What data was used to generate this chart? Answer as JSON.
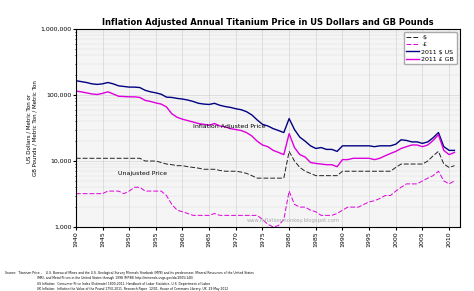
{
  "title": "Inflation Adjusted Annual Titanium Price in US Dollars and GB Pounds",
  "ylabel_line1": "US Dollars / Metric Ton or",
  "ylabel_line2": "GB Pounds / Metric Ton / Metric Ton",
  "legend": [
    "·$",
    "·£",
    "2011 $ US",
    "2011 £ GB"
  ],
  "background_color": "#f5f5f5",
  "grid_color": "#cccccc",
  "watermark": "www.inflationmonkey.blogspot.com",
  "source_line1": "Source:  Titanium Price -    U.S. Bureau of Mines and the U.S. Geological Survey Minerals Yearbook (MYB) and its predecessor, Mineral Resources of the United States",
  "source_line2": "                                (MR), and Metal Prices in the United States through 1998 (MP98) http://minerals.usgs.gov/ds/2005/140/",
  "source_line3": "                                US Inflation:  Consumer Price Index (Estimate) 1800-2011. Handbook of Labor Statistics, U.S. Department of Labor",
  "source_line4": "                                UK Inflation:  Inflation the Value of the Pound 1750-2011. Research Paper  12/01, House of Commons Library, UK. 29 May 2012",
  "years": [
    1940,
    1941,
    1942,
    1943,
    1944,
    1945,
    1946,
    1947,
    1948,
    1949,
    1950,
    1951,
    1952,
    1953,
    1954,
    1955,
    1956,
    1957,
    1958,
    1959,
    1960,
    1961,
    1962,
    1963,
    1964,
    1965,
    1966,
    1967,
    1968,
    1969,
    1970,
    1971,
    1972,
    1973,
    1974,
    1975,
    1976,
    1977,
    1978,
    1979,
    1980,
    1981,
    1982,
    1983,
    1984,
    1985,
    1986,
    1987,
    1988,
    1989,
    1990,
    1991,
    1992,
    1993,
    1994,
    1995,
    1996,
    1997,
    1998,
    1999,
    2000,
    2001,
    2002,
    2003,
    2004,
    2005,
    2006,
    2007,
    2008,
    2009,
    2010,
    2011
  ],
  "usd_nominal": [
    11000,
    11000,
    11000,
    11000,
    11000,
    11000,
    11000,
    11000,
    11000,
    11000,
    11000,
    11000,
    11000,
    10000,
    10000,
    10000,
    9500,
    9000,
    8800,
    8500,
    8500,
    8200,
    8000,
    7800,
    7500,
    7500,
    7500,
    7200,
    7000,
    7000,
    7000,
    6800,
    6500,
    6000,
    5500,
    5500,
    5500,
    5500,
    5500,
    5500,
    14000,
    10000,
    8000,
    7000,
    6500,
    6000,
    6000,
    6000,
    6000,
    6000,
    7000,
    7000,
    7000,
    7000,
    7000,
    7000,
    7000,
    7000,
    7000,
    7000,
    8000,
    9000,
    9000,
    9000,
    9000,
    9000,
    10000,
    12000,
    14000,
    9000,
    8000,
    8500
  ],
  "gbp_nominal": [
    3200,
    3200,
    3200,
    3200,
    3200,
    3200,
    3500,
    3500,
    3500,
    3200,
    3500,
    4000,
    4000,
    3500,
    3500,
    3500,
    3500,
    3000,
    2200,
    1800,
    1700,
    1600,
    1500,
    1500,
    1500,
    1500,
    1600,
    1500,
    1500,
    1500,
    1500,
    1500,
    1500,
    1500,
    1500,
    1300,
    1100,
    1000,
    1050,
    1300,
    3500,
    2200,
    2000,
    2000,
    1800,
    1700,
    1500,
    1500,
    1500,
    1600,
    1800,
    2000,
    2000,
    2000,
    2200,
    2400,
    2500,
    2700,
    3000,
    3000,
    3500,
    4000,
    4500,
    4500,
    4500,
    5000,
    5500,
    6000,
    7000,
    5000,
    4500,
    5000
  ],
  "usd_2011": [
    165000,
    160000,
    155000,
    148000,
    145000,
    148000,
    155000,
    148000,
    138000,
    135000,
    132000,
    132000,
    130000,
    118000,
    112000,
    108000,
    103000,
    93000,
    92000,
    89000,
    87000,
    84000,
    80000,
    75000,
    73000,
    72000,
    75000,
    70000,
    67000,
    65000,
    62000,
    60000,
    56000,
    50000,
    42000,
    36000,
    34000,
    31000,
    29000,
    27000,
    44000,
    30000,
    23000,
    20000,
    17000,
    15500,
    16000,
    15000,
    15000,
    14000,
    17000,
    17000,
    17000,
    17000,
    17000,
    17000,
    16500,
    17000,
    17000,
    17000,
    18000,
    21000,
    20500,
    19500,
    19500,
    18500,
    19500,
    22500,
    27000,
    16500,
    14500,
    14500
  ],
  "gbp_2011": [
    115000,
    112000,
    108000,
    104000,
    102000,
    106000,
    112000,
    104000,
    96000,
    95000,
    94000,
    94000,
    92000,
    83000,
    80000,
    76000,
    73000,
    66000,
    52000,
    46000,
    43000,
    41000,
    39000,
    37000,
    36000,
    35000,
    37000,
    34000,
    33000,
    31000,
    30000,
    29000,
    27000,
    24000,
    20000,
    17500,
    16500,
    14500,
    13500,
    12500,
    26000,
    16000,
    12500,
    11500,
    9500,
    9200,
    9000,
    8800,
    8800,
    8200,
    10500,
    10500,
    11000,
    11000,
    11000,
    11000,
    10500,
    11000,
    12000,
    13000,
    14000,
    15500,
    16500,
    17500,
    17500,
    16500,
    17500,
    20500,
    25000,
    14500,
    12500,
    13500
  ]
}
